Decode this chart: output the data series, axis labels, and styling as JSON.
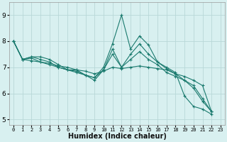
{
  "xlabel": "Humidex (Indice chaleur)",
  "ylabel": "",
  "bg_color": "#d8f0f0",
  "grid_color": "#b8d8d8",
  "line_color": "#1a7a6e",
  "xlim": [
    -0.5,
    23.5
  ],
  "ylim": [
    4.8,
    9.5
  ],
  "yticks": [
    5,
    6,
    7,
    8,
    9
  ],
  "xticks": [
    0,
    1,
    2,
    3,
    4,
    5,
    6,
    7,
    8,
    9,
    10,
    11,
    12,
    13,
    14,
    15,
    16,
    17,
    18,
    19,
    20,
    21,
    22,
    23
  ],
  "series": [
    [
      8.0,
      7.3,
      7.4,
      7.4,
      7.3,
      7.1,
      6.9,
      6.9,
      6.7,
      6.6,
      7.0,
      7.9,
      9.0,
      7.7,
      8.2,
      7.85,
      7.2,
      7.0,
      6.8,
      5.9,
      5.5,
      5.4,
      5.2,
      null
    ],
    [
      8.0,
      7.3,
      7.4,
      7.3,
      7.2,
      7.0,
      6.9,
      6.8,
      6.7,
      6.5,
      6.9,
      7.7,
      7.0,
      7.5,
      7.9,
      7.5,
      7.2,
      6.95,
      6.75,
      6.5,
      6.3,
      5.8,
      5.3,
      null
    ],
    [
      8.0,
      7.3,
      7.35,
      7.2,
      7.1,
      7.0,
      6.9,
      6.85,
      6.7,
      6.6,
      6.9,
      7.5,
      7.0,
      7.3,
      7.6,
      7.3,
      7.1,
      6.8,
      6.65,
      6.5,
      6.2,
      5.7,
      5.3,
      null
    ],
    [
      8.0,
      7.3,
      7.25,
      7.2,
      7.15,
      7.05,
      7.0,
      6.9,
      6.85,
      6.75,
      6.85,
      7.0,
      6.95,
      7.0,
      7.05,
      7.0,
      6.95,
      6.9,
      6.75,
      6.65,
      6.5,
      6.3,
      5.3,
      null
    ]
  ],
  "tick_fontsize": 6,
  "xlabel_fontsize": 7
}
